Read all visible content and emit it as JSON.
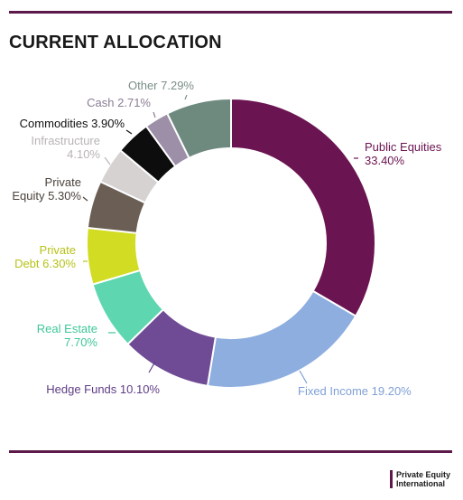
{
  "header": {
    "title": "CURRENT ALLOCATION"
  },
  "brand": {
    "line1": "Private Equity",
    "line2": "International",
    "accent": "#5c1a4a"
  },
  "chart_data": {
    "type": "pie",
    "variant": "donut",
    "title": "CURRENT ALLOCATION",
    "unit": "%",
    "slices": [
      {
        "name": "Public Equities",
        "value": 33.4,
        "label": [
          "Public Equities",
          "33.40%"
        ],
        "color": "#6b1452",
        "label_color": "#6b1452"
      },
      {
        "name": "Fixed Income",
        "value": 19.2,
        "label": [
          "Fixed Income 19.20%"
        ],
        "color": "#8eaee0",
        "label_color": "#7f9fd6"
      },
      {
        "name": "Hedge Funds",
        "value": 10.1,
        "label": [
          "Hedge Funds 10.10%"
        ],
        "color": "#6e4b94",
        "label_color": "#5e3d86"
      },
      {
        "name": "Real Estate",
        "value": 7.7,
        "label": [
          "Real Estate",
          "7.70%"
        ],
        "color": "#5ed7b0",
        "label_color": "#3fc79a"
      },
      {
        "name": "Private Debt",
        "value": 6.3,
        "label": [
          "Private",
          "Debt 6.30%"
        ],
        "color": "#d2dc23",
        "label_color": "#b7c21a"
      },
      {
        "name": "Private Equity",
        "value": 5.3,
        "label": [
          "Private",
          "Equity 5.30%"
        ],
        "color": "#6b5f55",
        "label_color": "#4a423b"
      },
      {
        "name": "Infrastructure",
        "value": 4.1,
        "label": [
          "Infrastructure",
          "4.10%"
        ],
        "color": "#d6d2d1",
        "label_color": "#b9b4b3"
      },
      {
        "name": "Commodities",
        "value": 3.9,
        "label": [
          "Commodities 3.90%"
        ],
        "color": "#0d0d0d",
        "label_color": "#111111"
      },
      {
        "name": "Cash",
        "value": 2.71,
        "label": [
          "Cash 2.71%"
        ],
        "color": "#9d8fa8",
        "label_color": "#8a7d94"
      },
      {
        "name": "Other",
        "value": 7.29,
        "label": [
          "Other 7.29%"
        ],
        "color": "#6e8a7f",
        "label_color": "#7a8f88"
      }
    ]
  }
}
